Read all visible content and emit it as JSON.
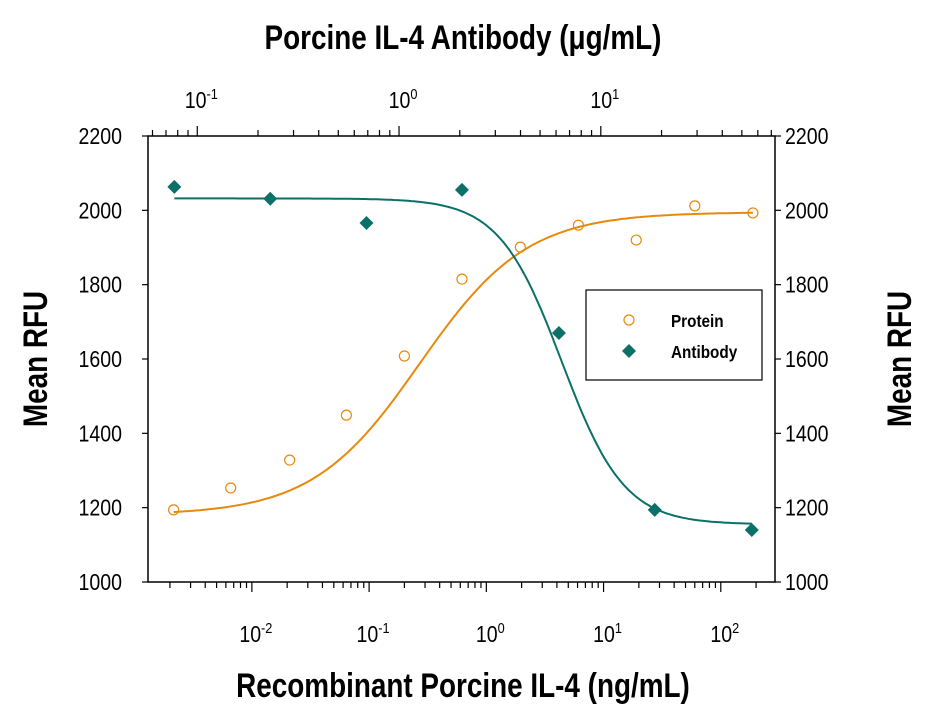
{
  "chart_data": {
    "type": "scatter",
    "title": "",
    "top_xlabel": "Porcine IL-4 Antibody (μg/mL)",
    "xlabel": "Recombinant Porcine IL-4 (ng/mL)",
    "ylabel": "Mean RFU",
    "ylabel_right": "Mean RFU",
    "x_scale": "log",
    "top_x_scale": "log",
    "xlim": [
      0.0013,
      290
    ],
    "top_xlim": [
      0.057,
      73
    ],
    "ylim": [
      1000,
      2200
    ],
    "x_ticks": [
      {
        "base": "10",
        "exp": "-2"
      },
      {
        "base": "10",
        "exp": "-1"
      },
      {
        "base": "10",
        "exp": "0"
      },
      {
        "base": "10",
        "exp": "1"
      },
      {
        "base": "10",
        "exp": "2"
      }
    ],
    "top_x_ticks": [
      {
        "base": "10",
        "exp": "-1"
      },
      {
        "base": "10",
        "exp": "0"
      },
      {
        "base": "10",
        "exp": "1"
      }
    ],
    "y_ticks": [
      "1000",
      "1200",
      "1400",
      "1600",
      "1800",
      "2000",
      "2200"
    ],
    "grid": false,
    "legend_position": "center-right",
    "series": [
      {
        "name": "Protein",
        "axis": "bottom",
        "marker": "open-circle",
        "color": "#E8890C",
        "x": [
          0.00215,
          0.0066,
          0.021,
          0.064,
          0.2,
          0.62,
          1.95,
          6.1,
          19,
          60,
          188
        ],
        "y": [
          1194,
          1253,
          1328,
          1449,
          1608,
          1815,
          1901,
          1960,
          1920,
          2012,
          1993
        ],
        "fit": {
          "bottom": 1180,
          "top": 1995,
          "ec50": 0.27,
          "hill": 0.95
        }
      },
      {
        "name": "Antibody",
        "axis": "top",
        "marker": "filled-diamond",
        "color": "#0B7068",
        "x": [
          0.077,
          0.23,
          0.69,
          2.05,
          6.2,
          18.5,
          56
        ],
        "y": [
          2063,
          2031,
          1966,
          2055,
          1670,
          1194,
          1140
        ],
        "fit": {
          "bottom": 1155,
          "top": 2032,
          "ec50": 6.4,
          "hill": -2.8
        }
      }
    ]
  }
}
